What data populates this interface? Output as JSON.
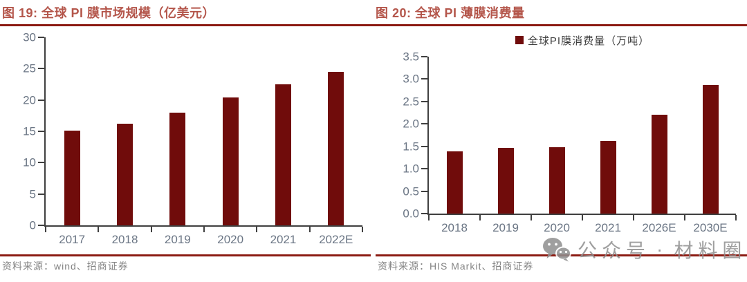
{
  "colors": {
    "bar": "#700C0B",
    "title_text": "#B4564B",
    "rule": "#8B1A12",
    "axis": "#3F3F3F",
    "axis_label": "#6A7584",
    "legend_text": "#3D3D3D",
    "source_text": "#848484",
    "watermark": "#8F8F8F"
  },
  "figures": [
    {
      "title": "图 19:  全球 PI 膜市场规模（亿美元）",
      "source": "资料来源：wind、招商证券"
    },
    {
      "title": "图 20:  全球 PI 薄膜消费量",
      "source": "资料来源：HIS Markit、招商证券"
    }
  ],
  "chart_data": [
    {
      "type": "bar",
      "title": "全球 PI 膜市场规模（亿美元）",
      "categories": [
        "2017",
        "2018",
        "2019",
        "2020",
        "2021",
        "2022E"
      ],
      "values": [
        15.1,
        16.2,
        18.0,
        20.4,
        22.5,
        24.5
      ],
      "xlabel": "",
      "ylabel": "",
      "ylim": [
        0,
        30
      ],
      "ytick_labels": [
        "30",
        "25",
        "20",
        "15",
        "10",
        "5",
        "0"
      ],
      "grid": false,
      "legend_position": "none",
      "bar_color": "#700C0B"
    },
    {
      "type": "bar",
      "title": "全球 PI 薄膜消费量",
      "legend": "全球PI膜消费量（万吨）",
      "categories": [
        "2018",
        "2019",
        "2020",
        "2021",
        "2026E",
        "2030E"
      ],
      "values": [
        1.39,
        1.46,
        1.48,
        1.62,
        2.21,
        2.87
      ],
      "xlabel": "",
      "ylabel": "",
      "ylim": [
        0,
        3.5
      ],
      "ytick_labels": [
        "3.5",
        "3.0",
        "2.5",
        "2.0",
        "1.5",
        "1.0",
        "0.5",
        "0.0"
      ],
      "grid": false,
      "legend_position": "top",
      "bar_color": "#700C0B"
    }
  ],
  "watermark": {
    "icon": "wechat-icon",
    "prefix": "公众号",
    "separator": "·",
    "suffix": "材料圈"
  }
}
